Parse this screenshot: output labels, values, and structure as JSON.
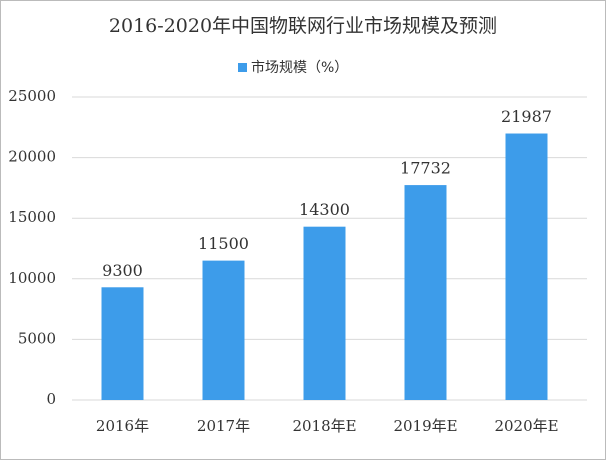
{
  "chart_data": {
    "type": "bar",
    "title": "2016-2020年中国物联网行业市场规模及预测",
    "categories": [
      "2016年",
      "2017年",
      "2018年E",
      "2019年E",
      "2020年E"
    ],
    "series": [
      {
        "name": "市场规模（%）",
        "color": "#3d9cea",
        "values": [
          9300,
          11500,
          14300,
          17732,
          21987
        ]
      }
    ],
    "ylim": [
      0,
      25000
    ],
    "yticks": [
      0,
      5000,
      10000,
      15000,
      20000,
      25000
    ],
    "grid": true,
    "legend": "top"
  }
}
